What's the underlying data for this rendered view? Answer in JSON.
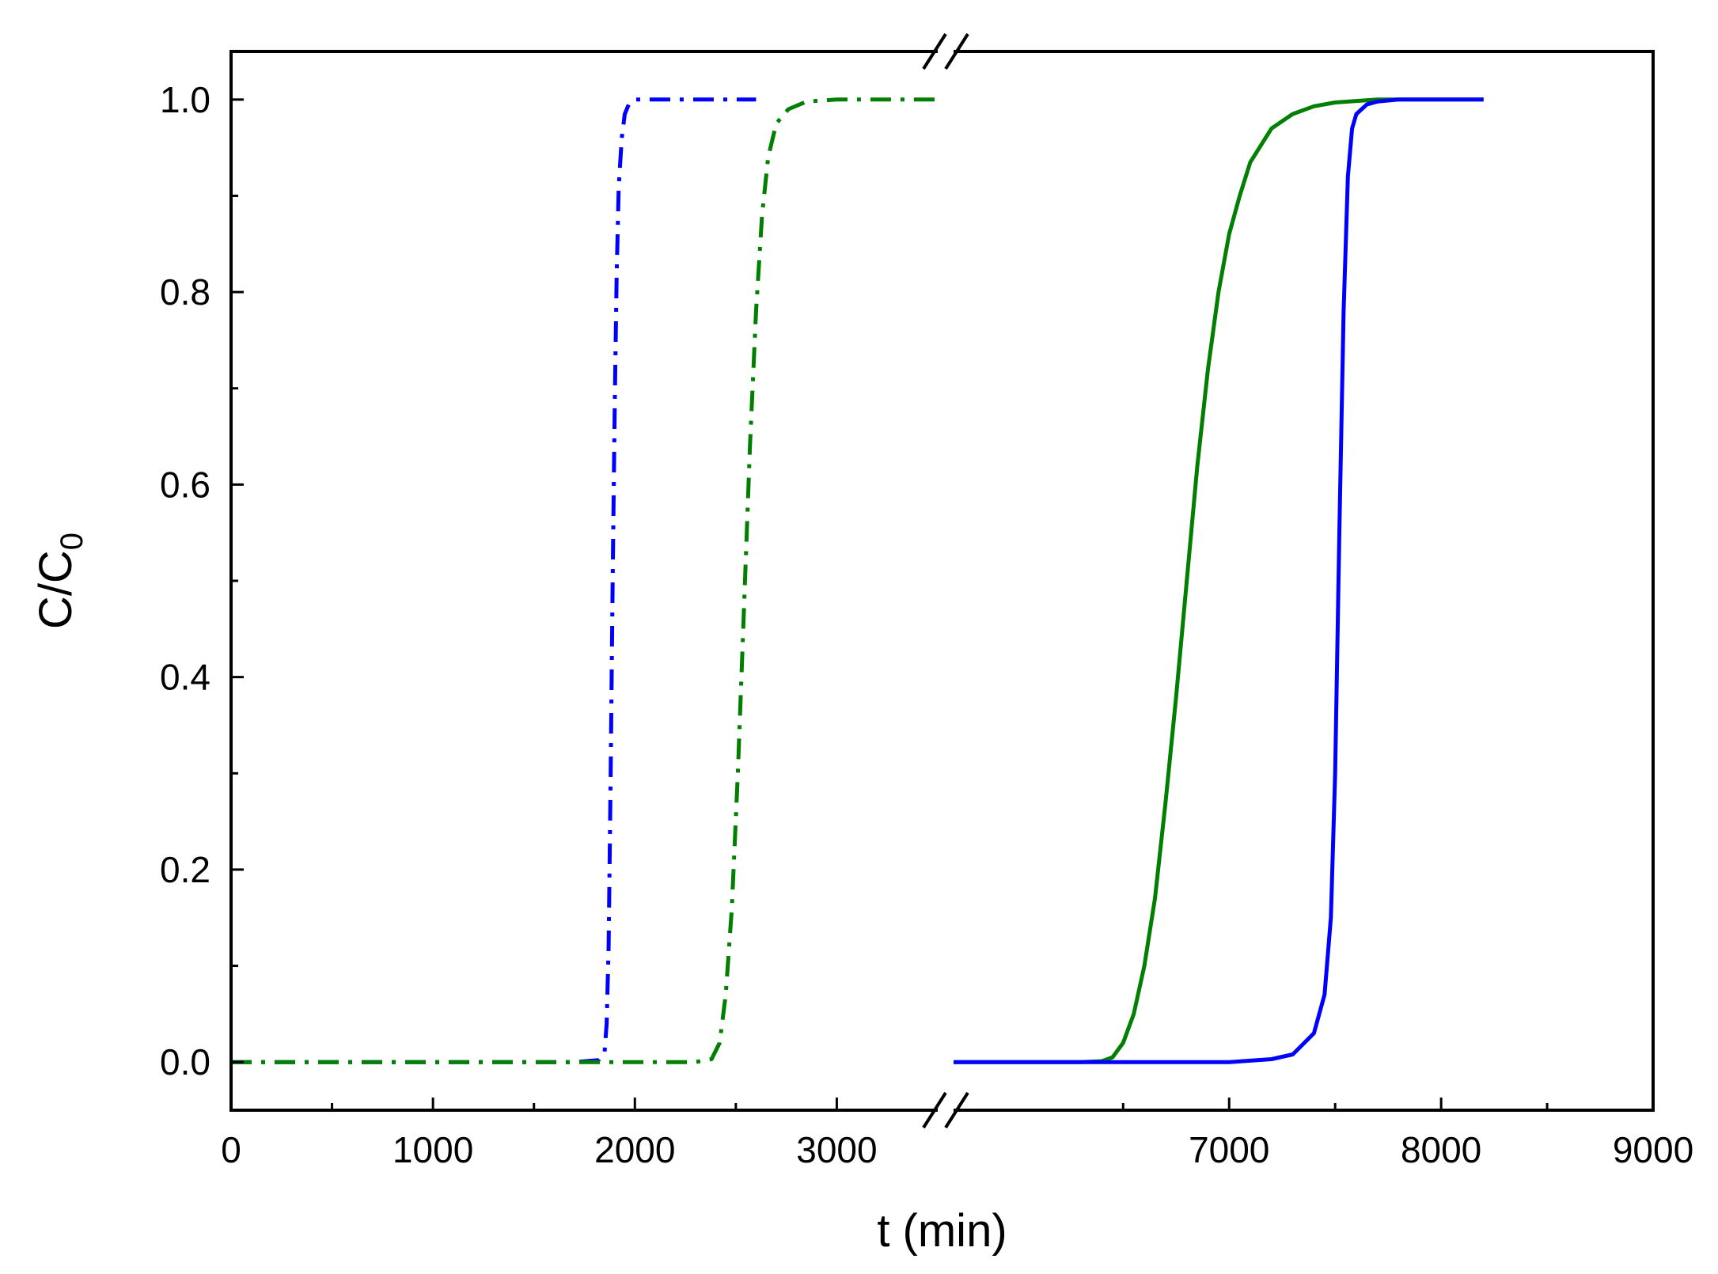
{
  "chart_data": {
    "type": "line",
    "title": "",
    "xlabel": "t (min)",
    "ylabel": {
      "main": "C/C",
      "subscript": "0"
    },
    "xlim_left": [
      0,
      3500
    ],
    "xlim_right": [
      5700,
      9000
    ],
    "ylim": [
      -0.05,
      1.05
    ],
    "x_axis_break": true,
    "grid": false,
    "legend": "none",
    "x_ticks_left": [
      {
        "value": 0,
        "label": "0"
      },
      {
        "value": 1000,
        "label": "1000"
      },
      {
        "value": 2000,
        "label": "2000"
      },
      {
        "value": 3000,
        "label": "3000"
      }
    ],
    "x_ticks_right": [
      {
        "value": 7000,
        "label": "7000"
      },
      {
        "value": 8000,
        "label": "8000"
      },
      {
        "value": 9000,
        "label": "9000"
      }
    ],
    "y_ticks": [
      {
        "value": 0.0,
        "label": "0.0"
      },
      {
        "value": 0.2,
        "label": "0.2"
      },
      {
        "value": 0.4,
        "label": "0.4"
      },
      {
        "value": 0.6,
        "label": "0.6"
      },
      {
        "value": 0.8,
        "label": "0.8"
      },
      {
        "value": 1.0,
        "label": "1.0"
      }
    ],
    "series": [
      {
        "color": "#0000ff",
        "style": "dashdot",
        "segment": "left",
        "x": [
          0,
          1000,
          1700,
          1820,
          1850,
          1860,
          1870,
          1880,
          1890,
          1900,
          1910,
          1920,
          1935,
          1950,
          1970,
          2000,
          2100,
          2300,
          2600
        ],
        "y": [
          0,
          0,
          0,
          0.002,
          0.01,
          0.04,
          0.12,
          0.3,
          0.5,
          0.68,
          0.82,
          0.91,
          0.96,
          0.985,
          0.995,
          1.0,
          1.0,
          1.0,
          1.0
        ]
      },
      {
        "color": "#007f00",
        "style": "dashdot",
        "segment": "left",
        "x": [
          0,
          1000,
          2000,
          2300,
          2380,
          2420,
          2450,
          2480,
          2510,
          2540,
          2570,
          2600,
          2630,
          2660,
          2700,
          2760,
          2850,
          3000,
          3200,
          3500
        ],
        "y": [
          0,
          0,
          0,
          0,
          0.003,
          0.02,
          0.07,
          0.16,
          0.3,
          0.47,
          0.64,
          0.78,
          0.88,
          0.94,
          0.975,
          0.99,
          0.998,
          1.0,
          1.0,
          1.0
        ]
      },
      {
        "color": "#007f00",
        "style": "solid",
        "segment": "right",
        "x": [
          5700,
          6000,
          6300,
          6400,
          6450,
          6500,
          6550,
          6600,
          6650,
          6700,
          6750,
          6800,
          6850,
          6900,
          6950,
          7000,
          7050,
          7100,
          7200,
          7300,
          7400,
          7500,
          7700,
          8000,
          8200
        ],
        "y": [
          0,
          0,
          0,
          0.001,
          0.005,
          0.02,
          0.05,
          0.1,
          0.17,
          0.27,
          0.38,
          0.5,
          0.62,
          0.72,
          0.8,
          0.86,
          0.9,
          0.935,
          0.97,
          0.985,
          0.993,
          0.997,
          1.0,
          1.0,
          1.0
        ]
      },
      {
        "color": "#0000ff",
        "style": "solid",
        "segment": "right",
        "x": [
          5700,
          6500,
          7000,
          7200,
          7300,
          7400,
          7450,
          7480,
          7500,
          7520,
          7540,
          7560,
          7580,
          7600,
          7650,
          7700,
          7800,
          8000,
          8200
        ],
        "y": [
          0,
          0,
          0,
          0.003,
          0.008,
          0.03,
          0.07,
          0.15,
          0.3,
          0.55,
          0.78,
          0.92,
          0.97,
          0.985,
          0.995,
          0.998,
          1.0,
          1.0,
          1.0
        ]
      }
    ]
  }
}
